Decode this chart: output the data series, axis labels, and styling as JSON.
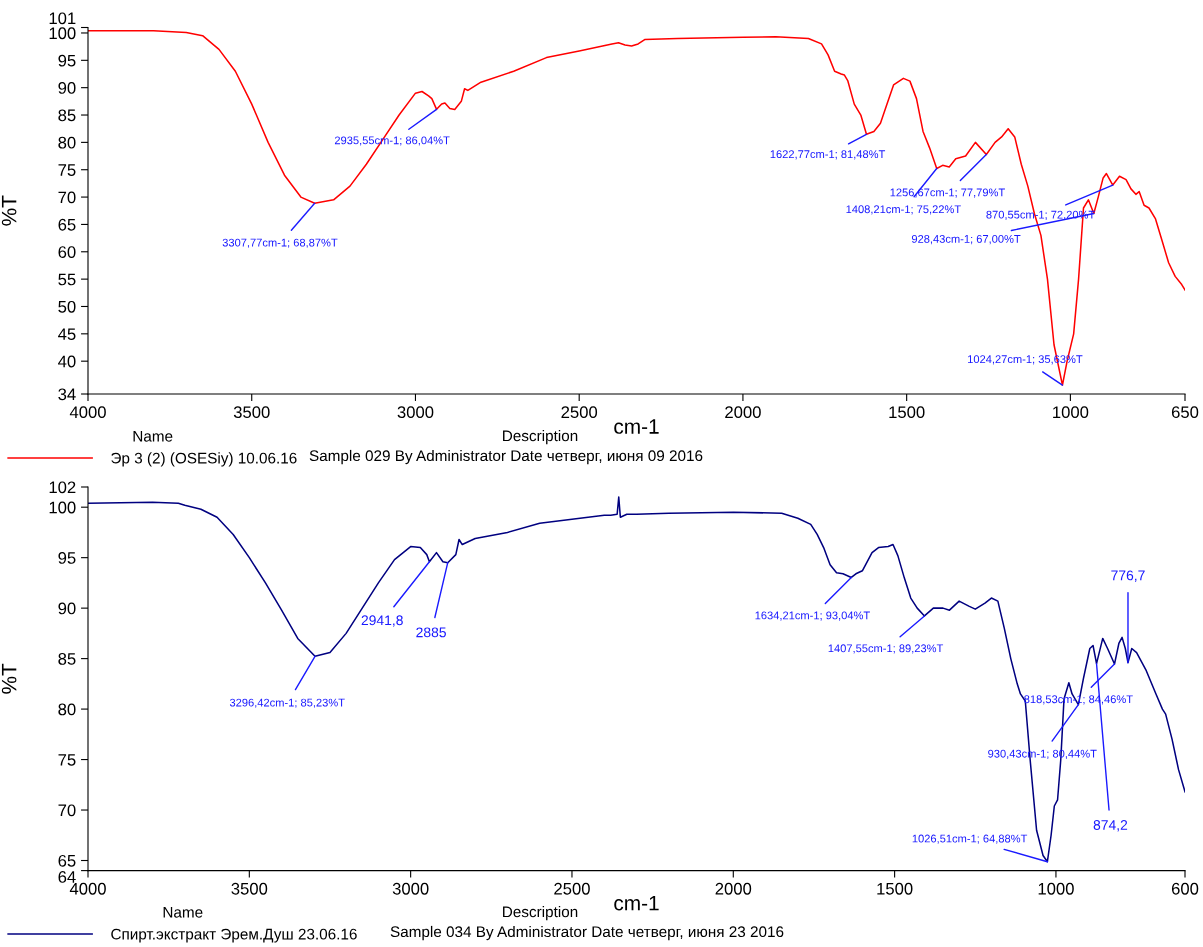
{
  "chart_data": [
    {
      "type": "line",
      "xlabel": "cm-1",
      "ylabel": "%T",
      "xlim": [
        4000,
        650
      ],
      "ylim": [
        34,
        101
      ],
      "xticks": [
        4000,
        3500,
        3000,
        2500,
        2000,
        1500,
        1000,
        650
      ],
      "yticks": [
        34,
        40,
        45,
        50,
        55,
        60,
        65,
        70,
        75,
        80,
        85,
        90,
        95,
        100,
        101
      ],
      "grid": false,
      "marker": "none",
      "line_style": "solid",
      "legend": "bottom",
      "legend_title": "Name",
      "series": [
        {
          "name": "Эр 3 (2) (OSESiy) 10.06.16",
          "color": "#ff0000",
          "x": [
            4000,
            3800,
            3700,
            3650,
            3600,
            3550,
            3500,
            3450,
            3400,
            3350,
            3307.77,
            3250,
            3200,
            3150,
            3100,
            3050,
            3000,
            2980,
            2960,
            2950,
            2935.55,
            2920,
            2910,
            2895,
            2880,
            2860,
            2850,
            2840,
            2800,
            2700,
            2600,
            2500,
            2400,
            2380,
            2360,
            2340,
            2320,
            2300,
            2200,
            2000,
            1900,
            1800,
            1760,
            1740,
            1720,
            1700,
            1690,
            1680,
            1660,
            1650,
            1640,
            1622.77,
            1600,
            1580,
            1560,
            1540,
            1510,
            1490,
            1470,
            1450,
            1430,
            1408.21,
            1390,
            1370,
            1350,
            1320,
            1290,
            1256.67,
            1230,
            1210,
            1190,
            1170,
            1150,
            1130,
            1110,
            1090,
            1070,
            1050,
            1024.27,
            1010,
            990,
            975,
            960,
            945,
            928.43,
            915,
            900,
            890,
            870.55,
            850,
            830,
            815,
            800,
            790,
            775,
            760,
            740,
            720,
            700,
            680,
            660,
            650
          ],
          "values": [
            100.4,
            100.4,
            100.1,
            99.5,
            97,
            93,
            87,
            80,
            74,
            70,
            68.87,
            69.5,
            72,
            76,
            80.5,
            85,
            89,
            89.3,
            88.5,
            88,
            86.04,
            87,
            87.2,
            86.2,
            86,
            87.5,
            89.8,
            89.5,
            91,
            93,
            95.5,
            96.7,
            98,
            98.2,
            97.8,
            97.6,
            98,
            98.8,
            99,
            99.2,
            99.3,
            99,
            98,
            96,
            93,
            92.5,
            92.3,
            91.3,
            87,
            86,
            85,
            81.48,
            82,
            83.5,
            87,
            90.5,
            91.7,
            91.2,
            88,
            82,
            79,
            75.22,
            75.8,
            75.5,
            77,
            77.5,
            80,
            77.79,
            80,
            81,
            82.5,
            81,
            76,
            72,
            67,
            63,
            55,
            43,
            35.63,
            40,
            45,
            55,
            68,
            69.5,
            67.0,
            70,
            73.5,
            74.3,
            72.2,
            73.8,
            73.2,
            71.5,
            70.5,
            71,
            68.5,
            68,
            66,
            62,
            58,
            55.5,
            54,
            53
          ]
        }
      ],
      "annotations": [
        {
          "text": "3307,77cm-1; 68,87%T",
          "x": 3307.77,
          "y": 68.87
        },
        {
          "text": "2935,55cm-1; 86,04%T",
          "x": 2935.55,
          "y": 86.04
        },
        {
          "text": "1622,77cm-1; 81,48%T",
          "x": 1622.77,
          "y": 81.48
        },
        {
          "text": "1256,67cm-1; 77,79%T",
          "x": 1256.67,
          "y": 77.79
        },
        {
          "text": "1408,21cm-1; 75,22%T",
          "x": 1408.21,
          "y": 75.22
        },
        {
          "text": "870,55cm-1; 72,20%T",
          "x": 870.55,
          "y": 72.2
        },
        {
          "text": "928,43cm-1; 67,00%T",
          "x": 928.43,
          "y": 67.0
        },
        {
          "text": "1024,27cm-1; 35,63%T",
          "x": 1024.27,
          "y": 35.63
        },
        "Description",
        "Sample 029 By Administrator Date четверг, июня 09 2016"
      ]
    },
    {
      "type": "line",
      "xlabel": "cm-1",
      "ylabel": "%T",
      "xlim": [
        4000,
        600
      ],
      "ylim": [
        64,
        102
      ],
      "xticks": [
        4000,
        3500,
        3000,
        2500,
        2000,
        1500,
        1000,
        600
      ],
      "yticks": [
        64,
        65,
        70,
        75,
        80,
        85,
        90,
        95,
        100,
        102
      ],
      "grid": false,
      "marker": "none",
      "line_style": "solid",
      "legend": "bottom",
      "legend_title": "Name",
      "series": [
        {
          "name": "Спирт.экстракт Эрем.Душ 23.06.16",
          "color": "#000080",
          "x": [
            4000,
            3800,
            3720,
            3700,
            3650,
            3600,
            3550,
            3500,
            3450,
            3400,
            3350,
            3296.42,
            3250,
            3200,
            3150,
            3100,
            3050,
            3000,
            2970,
            2950,
            2941.8,
            2920,
            2900,
            2885,
            2860,
            2850,
            2840,
            2800,
            2700,
            2600,
            2500,
            2400,
            2380,
            2360,
            2355,
            2350,
            2330,
            2300,
            2200,
            2000,
            1850,
            1800,
            1760,
            1740,
            1720,
            1700,
            1680,
            1660,
            1634.21,
            1620,
            1600,
            1570,
            1550,
            1520,
            1505,
            1490,
            1470,
            1450,
            1430,
            1407.55,
            1380,
            1350,
            1330,
            1300,
            1270,
            1250,
            1220,
            1200,
            1180,
            1160,
            1140,
            1120,
            1110,
            1095,
            1080,
            1060,
            1040,
            1026.51,
            1015,
            1005,
            995,
            985,
            975,
            960,
            950,
            930.43,
            915,
            895,
            885,
            874.2,
            855,
            840,
            818.53,
            805,
            795,
            785,
            776.7,
            765,
            750,
            720,
            690,
            670,
            660,
            640,
            620,
            600
          ],
          "values": [
            100.4,
            100.5,
            100.4,
            100.2,
            99.8,
            99,
            97.3,
            95,
            92.5,
            89.8,
            87,
            85.23,
            85.6,
            87.5,
            90,
            92.5,
            94.8,
            96.1,
            96,
            95.3,
            94.6,
            95.5,
            94.6,
            94.5,
            95.3,
            96.8,
            96.3,
            96.9,
            97.5,
            98.4,
            98.8,
            99.2,
            99.2,
            99.3,
            101.0,
            99.0,
            99.3,
            99.3,
            99.4,
            99.5,
            99.4,
            98.9,
            98.3,
            97.3,
            96,
            94.3,
            93.5,
            93.4,
            93.04,
            93.4,
            93.7,
            95.5,
            96,
            96.1,
            96.3,
            95.2,
            93,
            91,
            90,
            89.23,
            90,
            90,
            89.8,
            90.7,
            90.2,
            89.9,
            90.5,
            91,
            90.7,
            88,
            85,
            82.5,
            81.5,
            80.8,
            75,
            68,
            65.5,
            64.88,
            67.5,
            70.4,
            71,
            75,
            81,
            82.6,
            81.5,
            80.44,
            83,
            86,
            86.3,
            84.5,
            87,
            86,
            84.46,
            86.5,
            87.1,
            86,
            84.6,
            86,
            85.6,
            83.8,
            81.5,
            80,
            79.5,
            77,
            74,
            71.8
          ]
        }
      ],
      "annotations": [
        {
          "text": "3296,42cm-1; 85,23%T",
          "x": 3296.42,
          "y": 85.23
        },
        {
          "text": "2941,8",
          "x": 2941.8,
          "y": 94.6
        },
        {
          "text": "2885",
          "x": 2885,
          "y": 94.5
        },
        {
          "text": "1634,21cm-1; 93,04%T",
          "x": 1634.21,
          "y": 93.04
        },
        {
          "text": "1407,55cm-1; 89,23%T",
          "x": 1407.55,
          "y": 89.23
        },
        {
          "text": "930,43cm-1; 80,44%T",
          "x": 930.43,
          "y": 80.44
        },
        {
          "text": "818,53cm-1; 84,46%T",
          "x": 818.53,
          "y": 84.46
        },
        {
          "text": "874,2",
          "x": 874.2,
          "y": 84.5
        },
        {
          "text": "776,7",
          "x": 776.7,
          "y": 84.6
        },
        {
          "text": "1026,51cm-1; 64,88%T",
          "x": 1026.51,
          "y": 64.88
        },
        "Description",
        "Sample 034 By Administrator Date четверг, июня 23 2016"
      ]
    }
  ]
}
